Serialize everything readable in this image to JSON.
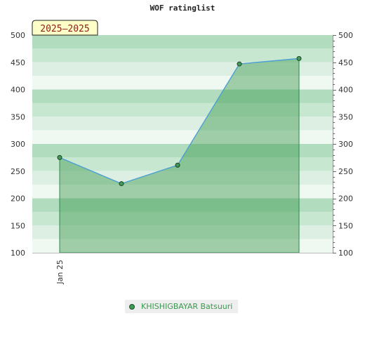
{
  "chart_data": {
    "type": "area",
    "title": "WOF ratinglist",
    "period_label": "2025–2025",
    "xlabel": "",
    "ylabel": "",
    "ylim": [
      100,
      500
    ],
    "y_ticks": [
      100,
      150,
      200,
      250,
      300,
      350,
      400,
      450,
      500
    ],
    "x_tick_labels": [
      "Jan 25"
    ],
    "legend_position": "bottom-center",
    "grid": true,
    "series": [
      {
        "name": "KHISHIGBAYAR Batsuuri",
        "color": "#3a9a4e",
        "line_color": "#4a9fd8",
        "values": [
          275,
          227,
          261,
          447,
          457
        ]
      }
    ]
  }
}
